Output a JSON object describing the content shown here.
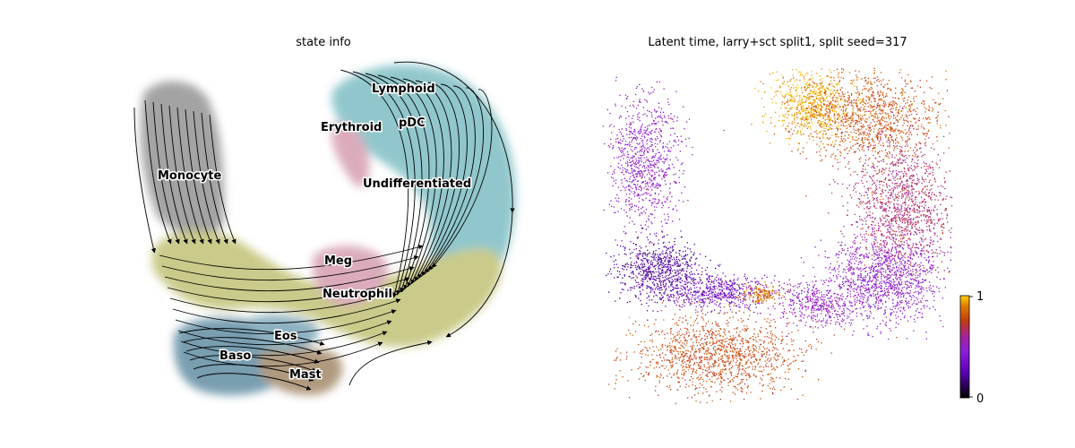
{
  "panels": [
    {
      "title": "state info"
    },
    {
      "title": "Latent time, larry+sct split1, split seed=317"
    }
  ],
  "chart_data": [
    {
      "type": "scatter",
      "title": "state info",
      "xlabel": "",
      "ylabel": "",
      "grid": false,
      "overlay": "velocity streamlines",
      "annotations": [
        {
          "text": "Lymphoid",
          "color": "#7fbfc5"
        },
        {
          "text": "pDC",
          "color": "#7fbfc5"
        },
        {
          "text": "Erythroid",
          "color": "#d9a0b6"
        },
        {
          "text": "Monocyte",
          "color": "#9a9a9a"
        },
        {
          "text": "Undifferentiated",
          "color": "#88c3c8"
        },
        {
          "text": "Meg",
          "color": "#d8a2b4"
        },
        {
          "text": "Neutrophil",
          "color": "#c4c47c"
        },
        {
          "text": "Eos",
          "color": "#80a8b8"
        },
        {
          "text": "Baso",
          "color": "#6a93a6"
        },
        {
          "text": "Mast",
          "color": "#a48f72"
        }
      ]
    },
    {
      "type": "scatter",
      "title": "Latent time, larry+sct split1, split seed=317",
      "xlabel": "",
      "ylabel": "",
      "grid": false,
      "colorbar": {
        "min": 0,
        "max": 1,
        "ticks": [
          "0",
          "1"
        ],
        "colormap": "gnuplot"
      }
    }
  ]
}
